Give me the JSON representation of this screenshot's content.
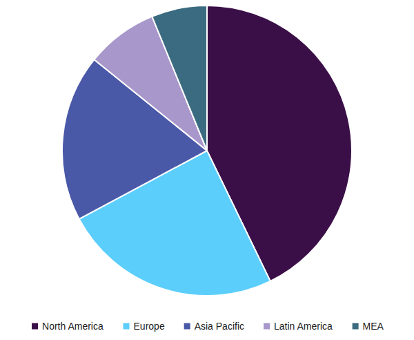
{
  "chart_data": {
    "type": "pie",
    "categories": [
      "North America",
      "Europe",
      "Asia Pacific",
      "Latin America",
      "MEA"
    ],
    "values": [
      42.8,
      24.4,
      18.6,
      8.0,
      6.2
    ],
    "colors": [
      "#3a0f47",
      "#5ccefb",
      "#4a58a8",
      "#a897cb",
      "#3b6b80"
    ],
    "legend": "bottom"
  }
}
